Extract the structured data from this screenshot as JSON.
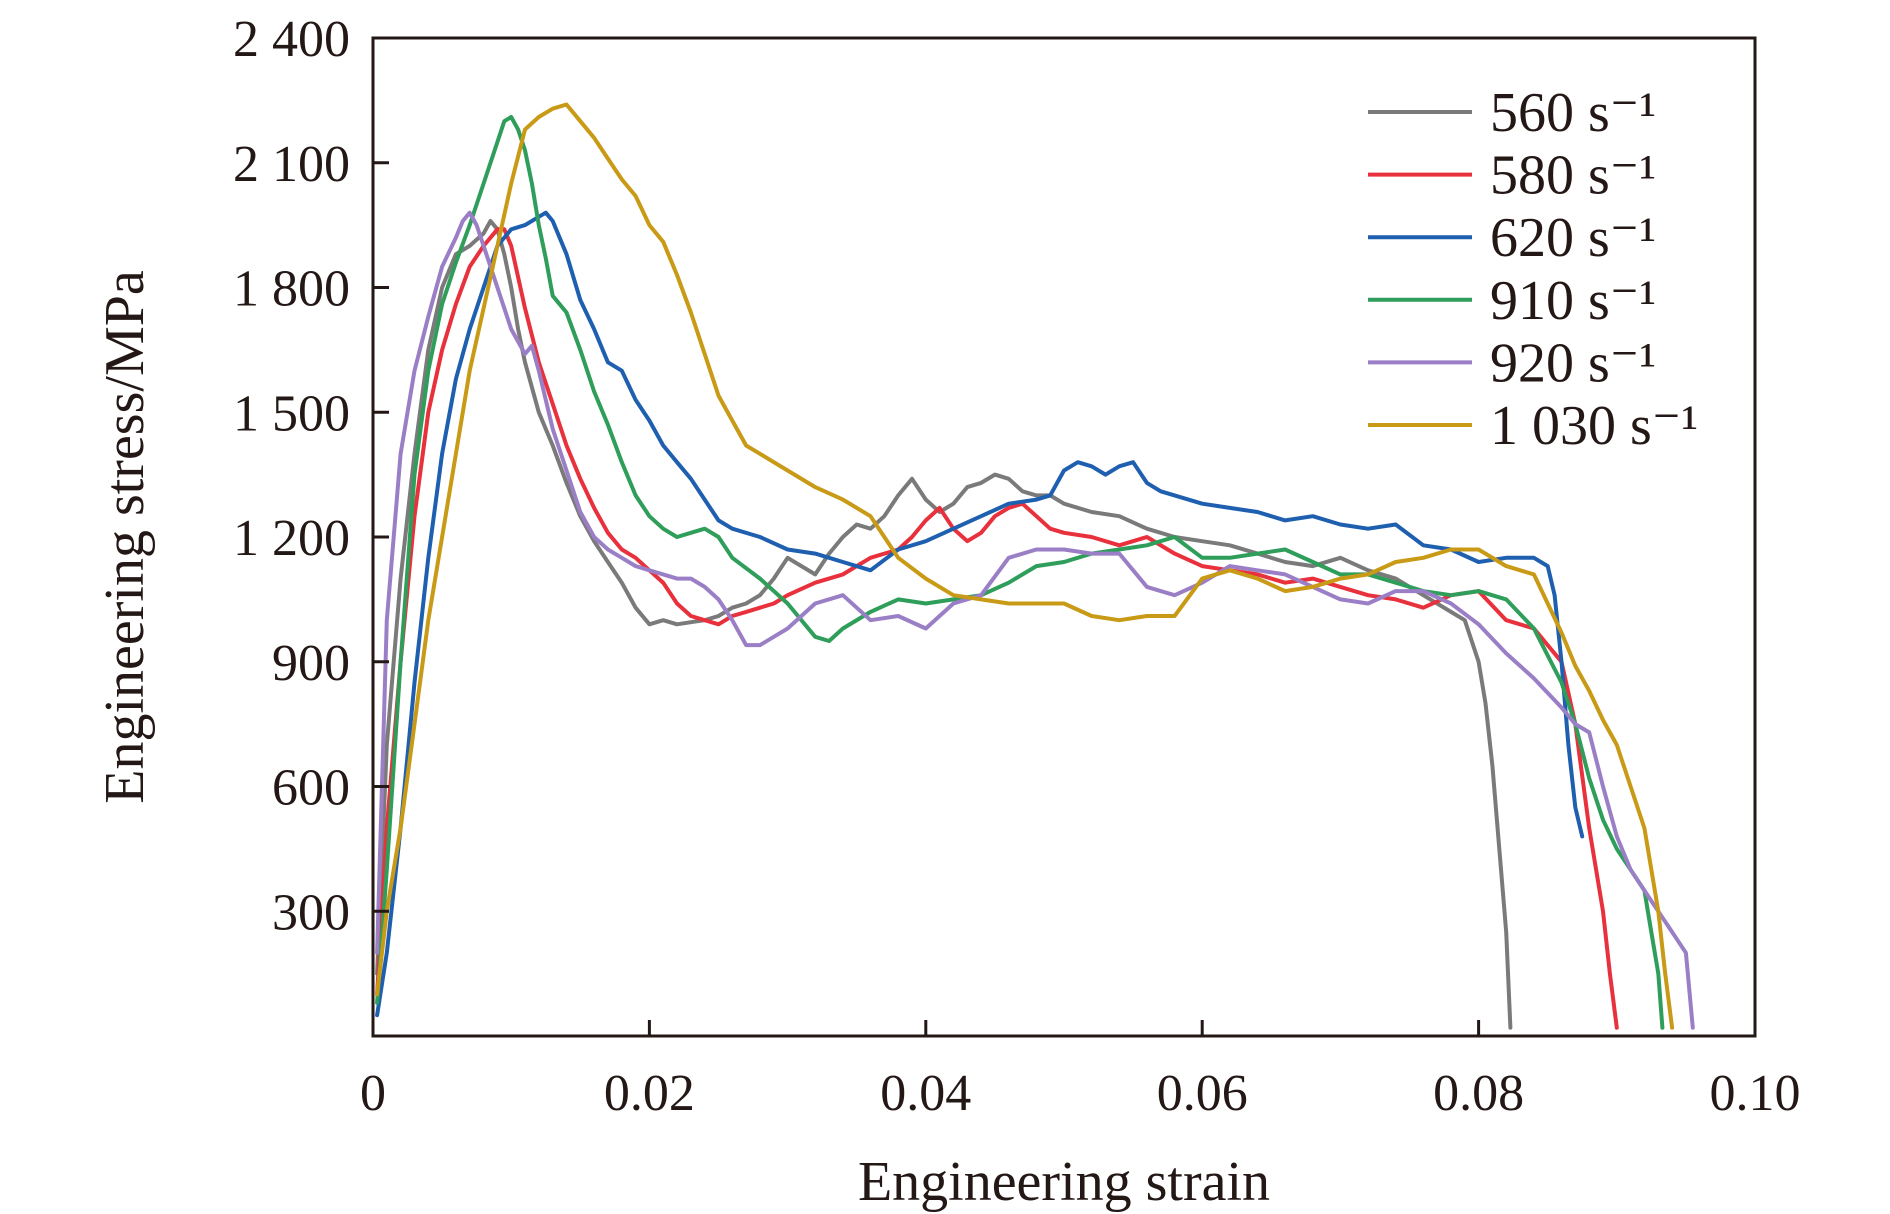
{
  "chart_data": {
    "type": "line",
    "title": "",
    "xlabel": "Engineering strain",
    "ylabel": "Engineering stress/MPa",
    "xlim": [
      0,
      0.1
    ],
    "ylim": [
      0,
      2400
    ],
    "x_ticks": [
      0,
      0.02,
      0.04,
      0.06,
      0.08,
      0.1
    ],
    "x_tick_labels": [
      "0",
      "0.02",
      "0.04",
      "0.06",
      "0.08",
      "0.10"
    ],
    "y_ticks": [
      300,
      600,
      900,
      1200,
      1500,
      1800,
      2100,
      2400
    ],
    "y_tick_labels": [
      "300",
      "600",
      "900",
      "1 200",
      "1 500",
      "1 800",
      "2 100",
      "2 400"
    ],
    "grid": false,
    "legend_position": "top-right",
    "series": [
      {
        "name": "560 s⁻¹",
        "color": "#7a7a7a",
        "x": [
          0.0003,
          0.001,
          0.002,
          0.003,
          0.004,
          0.005,
          0.006,
          0.007,
          0.008,
          0.0085,
          0.009,
          0.0095,
          0.01,
          0.0105,
          0.011,
          0.0115,
          0.012,
          0.013,
          0.014,
          0.015,
          0.016,
          0.017,
          0.018,
          0.019,
          0.02,
          0.021,
          0.022,
          0.023,
          0.024,
          0.025,
          0.026,
          0.027,
          0.028,
          0.029,
          0.03,
          0.031,
          0.032,
          0.033,
          0.034,
          0.035,
          0.036,
          0.037,
          0.038,
          0.039,
          0.04,
          0.041,
          0.042,
          0.043,
          0.044,
          0.045,
          0.046,
          0.047,
          0.048,
          0.049,
          0.05,
          0.052,
          0.054,
          0.056,
          0.058,
          0.06,
          0.062,
          0.064,
          0.066,
          0.068,
          0.07,
          0.072,
          0.074,
          0.076,
          0.078,
          0.079,
          0.08,
          0.0805,
          0.081,
          0.0815,
          0.082,
          0.0823
        ],
        "y": [
          150,
          700,
          1100,
          1400,
          1650,
          1800,
          1880,
          1900,
          1930,
          1960,
          1940,
          1880,
          1800,
          1700,
          1620,
          1560,
          1500,
          1420,
          1330,
          1250,
          1190,
          1140,
          1090,
          1030,
          990,
          1000,
          990,
          995,
          1000,
          1010,
          1030,
          1040,
          1060,
          1100,
          1150,
          1130,
          1110,
          1160,
          1200,
          1230,
          1220,
          1250,
          1300,
          1340,
          1290,
          1260,
          1280,
          1320,
          1330,
          1350,
          1340,
          1310,
          1300,
          1300,
          1280,
          1260,
          1250,
          1220,
          1200,
          1190,
          1180,
          1160,
          1140,
          1130,
          1150,
          1120,
          1100,
          1060,
          1020,
          1000,
          900,
          800,
          650,
          450,
          250,
          20
        ]
      },
      {
        "name": "580 s⁻¹",
        "color": "#e8313c",
        "x": [
          0.0003,
          0.001,
          0.002,
          0.003,
          0.004,
          0.005,
          0.006,
          0.007,
          0.008,
          0.009,
          0.0095,
          0.01,
          0.011,
          0.012,
          0.013,
          0.014,
          0.015,
          0.016,
          0.017,
          0.018,
          0.019,
          0.02,
          0.021,
          0.022,
          0.023,
          0.024,
          0.025,
          0.026,
          0.027,
          0.028,
          0.029,
          0.03,
          0.032,
          0.034,
          0.036,
          0.038,
          0.039,
          0.04,
          0.041,
          0.042,
          0.043,
          0.044,
          0.045,
          0.046,
          0.047,
          0.048,
          0.049,
          0.05,
          0.052,
          0.054,
          0.056,
          0.058,
          0.06,
          0.062,
          0.064,
          0.066,
          0.068,
          0.07,
          0.072,
          0.074,
          0.076,
          0.078,
          0.08,
          0.082,
          0.084,
          0.086,
          0.087,
          0.088,
          0.089,
          0.0895,
          0.09
        ],
        "y": [
          100,
          500,
          900,
          1250,
          1500,
          1650,
          1760,
          1850,
          1900,
          1940,
          1940,
          1900,
          1750,
          1620,
          1520,
          1420,
          1340,
          1270,
          1210,
          1170,
          1150,
          1120,
          1090,
          1040,
          1010,
          1000,
          990,
          1010,
          1020,
          1030,
          1040,
          1060,
          1090,
          1110,
          1150,
          1170,
          1200,
          1240,
          1270,
          1220,
          1190,
          1210,
          1250,
          1270,
          1280,
          1250,
          1220,
          1210,
          1200,
          1180,
          1200,
          1160,
          1130,
          1120,
          1110,
          1090,
          1100,
          1080,
          1060,
          1050,
          1030,
          1060,
          1070,
          1000,
          980,
          900,
          750,
          500,
          300,
          150,
          20
        ]
      },
      {
        "name": "620 s⁻¹",
        "color": "#1f5fb0",
        "x": [
          0.0003,
          0.001,
          0.002,
          0.003,
          0.004,
          0.005,
          0.006,
          0.007,
          0.008,
          0.009,
          0.01,
          0.011,
          0.012,
          0.0125,
          0.013,
          0.014,
          0.015,
          0.016,
          0.017,
          0.018,
          0.019,
          0.02,
          0.021,
          0.022,
          0.023,
          0.024,
          0.025,
          0.026,
          0.028,
          0.03,
          0.032,
          0.034,
          0.036,
          0.038,
          0.04,
          0.042,
          0.044,
          0.046,
          0.048,
          0.049,
          0.05,
          0.051,
          0.052,
          0.053,
          0.054,
          0.055,
          0.056,
          0.057,
          0.058,
          0.06,
          0.062,
          0.064,
          0.066,
          0.068,
          0.07,
          0.072,
          0.074,
          0.076,
          0.078,
          0.08,
          0.082,
          0.084,
          0.085,
          0.0855,
          0.086,
          0.0865,
          0.087,
          0.0875
        ],
        "y": [
          50,
          200,
          500,
          850,
          1150,
          1400,
          1580,
          1700,
          1800,
          1900,
          1940,
          1950,
          1970,
          1980,
          1960,
          1880,
          1770,
          1700,
          1620,
          1600,
          1530,
          1480,
          1420,
          1380,
          1340,
          1290,
          1240,
          1220,
          1200,
          1170,
          1160,
          1140,
          1120,
          1170,
          1190,
          1220,
          1250,
          1280,
          1290,
          1300,
          1360,
          1380,
          1370,
          1350,
          1370,
          1380,
          1330,
          1310,
          1300,
          1280,
          1270,
          1260,
          1240,
          1250,
          1230,
          1220,
          1230,
          1180,
          1170,
          1140,
          1150,
          1150,
          1130,
          1060,
          900,
          700,
          550,
          480
        ]
      },
      {
        "name": "910 s⁻¹",
        "color": "#2e9e5a",
        "x": [
          0.0003,
          0.001,
          0.002,
          0.003,
          0.004,
          0.005,
          0.006,
          0.007,
          0.008,
          0.009,
          0.0095,
          0.01,
          0.0105,
          0.011,
          0.0115,
          0.012,
          0.0125,
          0.013,
          0.014,
          0.015,
          0.016,
          0.017,
          0.018,
          0.019,
          0.02,
          0.021,
          0.022,
          0.023,
          0.024,
          0.025,
          0.026,
          0.028,
          0.03,
          0.032,
          0.033,
          0.034,
          0.036,
          0.038,
          0.04,
          0.042,
          0.044,
          0.046,
          0.048,
          0.05,
          0.052,
          0.054,
          0.056,
          0.058,
          0.06,
          0.062,
          0.064,
          0.066,
          0.068,
          0.07,
          0.072,
          0.074,
          0.076,
          0.078,
          0.08,
          0.082,
          0.084,
          0.086,
          0.087,
          0.088,
          0.089,
          0.09,
          0.091,
          0.092,
          0.0925,
          0.093,
          0.0933
        ],
        "y": [
          80,
          400,
          900,
          1350,
          1600,
          1760,
          1860,
          1950,
          2050,
          2150,
          2200,
          2210,
          2180,
          2130,
          2050,
          1950,
          1870,
          1780,
          1740,
          1650,
          1550,
          1470,
          1380,
          1300,
          1250,
          1220,
          1200,
          1210,
          1220,
          1200,
          1150,
          1100,
          1040,
          960,
          950,
          980,
          1020,
          1050,
          1040,
          1050,
          1060,
          1090,
          1130,
          1140,
          1160,
          1170,
          1180,
          1200,
          1150,
          1150,
          1160,
          1170,
          1140,
          1110,
          1110,
          1090,
          1070,
          1060,
          1070,
          1050,
          980,
          850,
          750,
          620,
          520,
          450,
          400,
          350,
          250,
          150,
          20
        ]
      },
      {
        "name": "920 s⁻¹",
        "color": "#9b7fc6",
        "x": [
          0.0003,
          0.001,
          0.002,
          0.003,
          0.004,
          0.005,
          0.006,
          0.0065,
          0.007,
          0.0075,
          0.008,
          0.009,
          0.01,
          0.011,
          0.0115,
          0.012,
          0.013,
          0.014,
          0.015,
          0.016,
          0.017,
          0.018,
          0.019,
          0.02,
          0.021,
          0.022,
          0.023,
          0.024,
          0.025,
          0.026,
          0.027,
          0.028,
          0.029,
          0.03,
          0.032,
          0.034,
          0.036,
          0.038,
          0.04,
          0.042,
          0.044,
          0.046,
          0.048,
          0.05,
          0.052,
          0.054,
          0.056,
          0.058,
          0.06,
          0.062,
          0.064,
          0.066,
          0.068,
          0.07,
          0.072,
          0.074,
          0.076,
          0.078,
          0.08,
          0.082,
          0.084,
          0.086,
          0.087,
          0.088,
          0.089,
          0.09,
          0.091,
          0.092,
          0.093,
          0.094,
          0.095,
          0.0955
        ],
        "y": [
          200,
          1000,
          1400,
          1600,
          1730,
          1850,
          1920,
          1960,
          1980,
          1950,
          1900,
          1800,
          1700,
          1640,
          1660,
          1600,
          1460,
          1360,
          1260,
          1200,
          1170,
          1150,
          1130,
          1120,
          1110,
          1100,
          1100,
          1080,
          1050,
          1000,
          940,
          940,
          960,
          980,
          1040,
          1060,
          1000,
          1010,
          980,
          1040,
          1060,
          1150,
          1170,
          1170,
          1160,
          1160,
          1080,
          1060,
          1090,
          1130,
          1120,
          1110,
          1080,
          1050,
          1040,
          1070,
          1070,
          1040,
          990,
          920,
          860,
          790,
          750,
          730,
          600,
          480,
          400,
          350,
          300,
          250,
          200,
          20
        ]
      },
      {
        "name": "1 030 s⁻¹",
        "color": "#c99a16",
        "x": [
          0.0003,
          0.001,
          0.002,
          0.003,
          0.004,
          0.005,
          0.006,
          0.007,
          0.008,
          0.009,
          0.01,
          0.011,
          0.012,
          0.013,
          0.014,
          0.015,
          0.016,
          0.017,
          0.018,
          0.019,
          0.02,
          0.021,
          0.022,
          0.023,
          0.024,
          0.025,
          0.026,
          0.027,
          0.028,
          0.029,
          0.03,
          0.032,
          0.034,
          0.036,
          0.038,
          0.04,
          0.042,
          0.044,
          0.046,
          0.048,
          0.05,
          0.052,
          0.054,
          0.056,
          0.058,
          0.06,
          0.062,
          0.064,
          0.066,
          0.068,
          0.07,
          0.072,
          0.074,
          0.076,
          0.078,
          0.08,
          0.082,
          0.084,
          0.086,
          0.087,
          0.088,
          0.089,
          0.09,
          0.091,
          0.092,
          0.093,
          0.0935,
          0.094
        ],
        "y": [
          100,
          300,
          500,
          750,
          1000,
          1200,
          1400,
          1600,
          1750,
          1900,
          2050,
          2180,
          2210,
          2230,
          2240,
          2200,
          2160,
          2110,
          2060,
          2020,
          1950,
          1910,
          1830,
          1740,
          1640,
          1540,
          1480,
          1420,
          1400,
          1380,
          1360,
          1320,
          1290,
          1250,
          1150,
          1100,
          1060,
          1050,
          1040,
          1040,
          1040,
          1010,
          1000,
          1010,
          1010,
          1100,
          1120,
          1100,
          1070,
          1080,
          1100,
          1110,
          1140,
          1150,
          1170,
          1170,
          1130,
          1110,
          970,
          890,
          830,
          760,
          700,
          600,
          500,
          300,
          150,
          20
        ]
      }
    ]
  }
}
